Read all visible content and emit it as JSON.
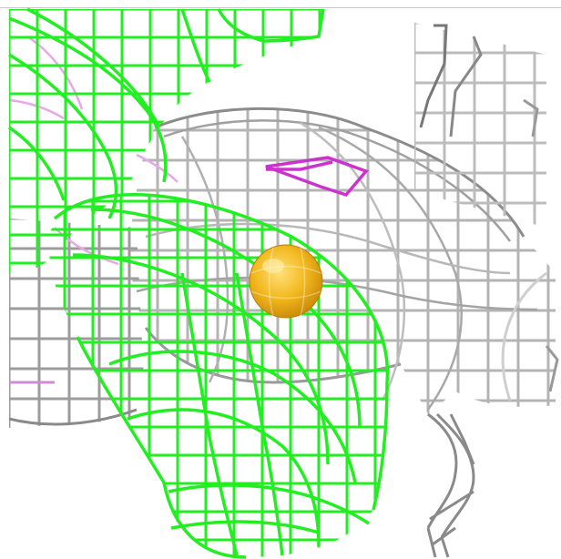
{
  "scene": {
    "type": "molecular-density-mesh",
    "colors": {
      "background": "#ffffff",
      "grey_mesh": "#b4b4b4",
      "grey_mesh_dark": "#7c7c7c",
      "green_mesh": "#22ee22",
      "magenta_mesh": "#cc33cc",
      "pink_mesh": "#e6a8e6",
      "atom": "#f2b81e",
      "atom_highlight": "#ffe07a"
    }
  }
}
